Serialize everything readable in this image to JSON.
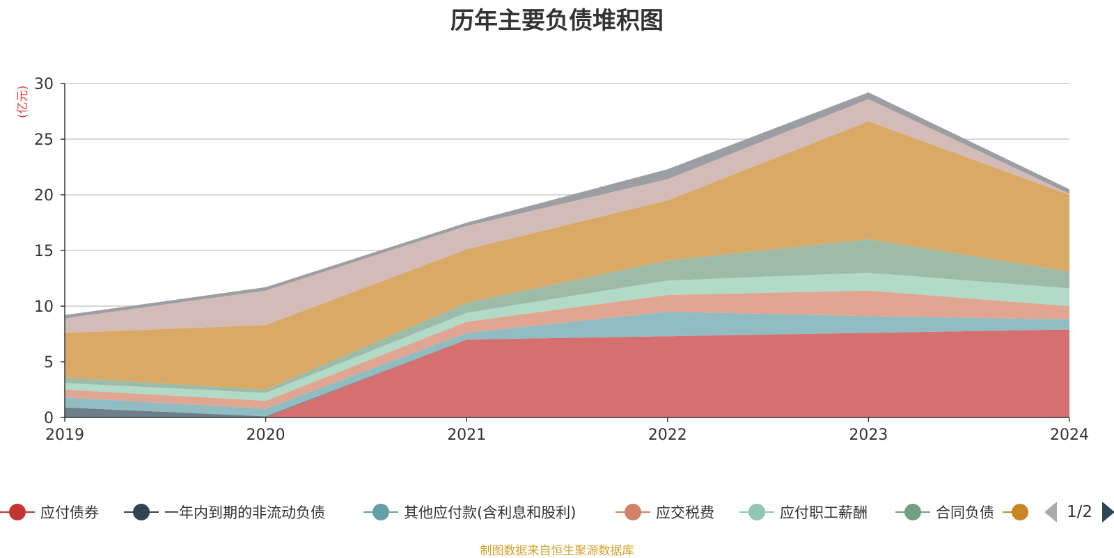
{
  "title": "历年主要负债堆积图",
  "unit": "(亿元)",
  "source": "制图数据来自恒生聚源数据库",
  "pager": {
    "text": "1/2"
  },
  "legend_items": [
    {
      "name": "应付债券",
      "color": "#c23531"
    },
    {
      "name": "一年内到期的非流动负债",
      "color": "#2f4554"
    },
    {
      "name": "其他应付款(含利息和股利)",
      "color": "#61a0a8"
    },
    {
      "name": "应交税费",
      "color": "#d48265"
    },
    {
      "name": "应付职工薪酬",
      "color": "#91c7ae"
    },
    {
      "name": "合同负债",
      "color": "#749f83"
    },
    {
      "name": "",
      "color": "#ca8622"
    }
  ],
  "chart_data": {
    "type": "area",
    "stacked": true,
    "title": "历年主要负债堆积图",
    "ylabel": "(亿元)",
    "x": [
      "2019",
      "2020",
      "2021",
      "2022",
      "2023",
      "2024"
    ],
    "ylim": [
      0,
      30
    ],
    "yticks": [
      0,
      5,
      10,
      15,
      20,
      25,
      30
    ],
    "grid": true,
    "legend_position": "bottom",
    "series": [
      {
        "name": "应付债券",
        "color": "#d67070",
        "values": [
          0,
          0,
          7.0,
          7.3,
          7.6,
          7.9
        ]
      },
      {
        "name": "一年内到期的非流动负债",
        "color": "#6e7e88",
        "values": [
          0.9,
          0.1,
          0,
          0,
          0,
          0
        ]
      },
      {
        "name": "其他应付款(含利息和股利)",
        "color": "#90bcc2",
        "values": [
          0.9,
          0.7,
          0.6,
          2.2,
          1.5,
          0.9
        ]
      },
      {
        "name": "应交税费",
        "color": "#e1a692",
        "values": [
          0.7,
          0.7,
          1.0,
          1.5,
          2.3,
          1.2
        ]
      },
      {
        "name": "应付职工薪酬",
        "color": "#b1dac7",
        "values": [
          0.6,
          0.7,
          0.8,
          1.3,
          1.6,
          1.6
        ]
      },
      {
        "name": "合同负债",
        "color": "#9ebba7",
        "values": [
          0.5,
          0.3,
          0.9,
          1.8,
          3.0,
          1.5
        ]
      },
      {
        "values": [
          4.0,
          5.8,
          4.8,
          5.4,
          10.6,
          6.9
        ],
        "color": "#d9a965"
      },
      {
        "values": [
          1.3,
          3.1,
          2.1,
          1.9,
          2.0,
          0.1
        ],
        "color": "#d3bcb8"
      },
      {
        "values": [
          0.3,
          0.3,
          0.3,
          0.9,
          0.6,
          0.4
        ],
        "color": "#9b9ea3"
      }
    ]
  }
}
